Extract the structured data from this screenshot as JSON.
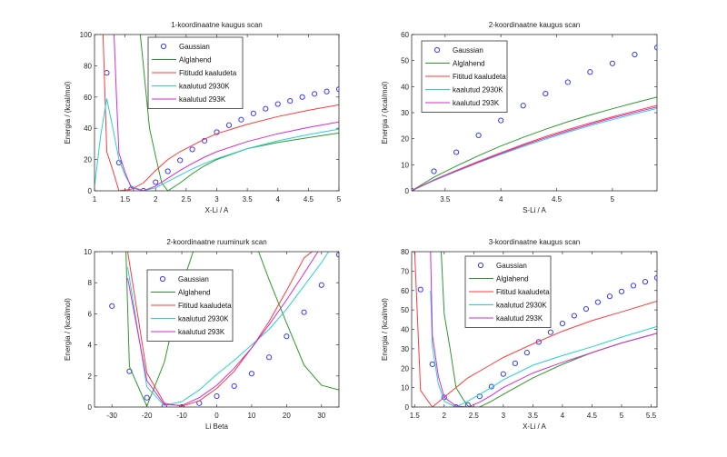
{
  "figure": {
    "background": "#ffffff",
    "series_styles": {
      "Gaussian": {
        "color": "#3a3aff",
        "marker": "circle"
      },
      "Alglahend": {
        "color": "#2c9a2c"
      },
      "Fititud kaaludeta": {
        "color": "#ff3a3a"
      },
      "kaalutud 2930K": {
        "color": "#2ad0d0"
      },
      "kaalutud 293K": {
        "color": "#d22ed2"
      }
    }
  },
  "chart_data": [
    {
      "type": "line",
      "title": "1-koordinaatne kaugus scan",
      "xlabel": "X-Li / A",
      "ylabel": "Energia / (kcal/mol)",
      "xlim": [
        1,
        5
      ],
      "ylim": [
        0,
        100
      ],
      "xticks": [
        1,
        1.5,
        2,
        2.5,
        3,
        3.5,
        4,
        4.5,
        5
      ],
      "xtick_labels": [
        "1",
        "1.5",
        "2",
        "2.5",
        "3",
        "3.5",
        "4",
        "4.5",
        "5"
      ],
      "yticks": [
        0,
        20,
        40,
        60,
        80,
        100
      ],
      "ytick_labels": [
        "0",
        "20",
        "40",
        "60",
        "80",
        "100"
      ],
      "legend": {
        "position": "top-center",
        "entries": [
          "Gaussian",
          "Alglahend",
          "Fititudd kaaludeta",
          "kaalutud 2930K",
          "kaalutud 293K"
        ]
      },
      "series": [
        {
          "name": "Gaussian",
          "style": "Gaussian",
          "x": [
            1.2,
            1.4,
            1.6,
            1.8,
            2.0,
            2.2,
            2.4,
            2.6,
            2.8,
            3.0,
            3.2,
            3.4,
            3.6,
            3.8,
            4.0,
            4.2,
            4.4,
            4.6,
            4.8,
            5.0
          ],
          "y": [
            75.5,
            18,
            1,
            0,
            5.5,
            12.5,
            19.5,
            26.5,
            32,
            37.5,
            42,
            45.5,
            49.5,
            52.5,
            55.5,
            57.5,
            60,
            62,
            63.5,
            65
          ]
        },
        {
          "name": "Alglahend",
          "style": "Alglahend",
          "x": [
            1.75,
            1.8,
            1.9,
            2.0,
            2.1,
            2.2,
            2.4,
            2.6,
            2.8,
            3.0,
            3.5,
            4.0,
            4.5,
            5.0
          ],
          "y": [
            100,
            80,
            40,
            22,
            5,
            0,
            5,
            11,
            16,
            20,
            27,
            31,
            34,
            37
          ]
        },
        {
          "name": "Fititudd kaaludeta",
          "style": "Fititud kaaludeta",
          "x": [
            1.14,
            1.2,
            1.3,
            1.4,
            1.6,
            1.8,
            2.0,
            2.2,
            2.4,
            2.6,
            2.8,
            3.0,
            3.5,
            4.0,
            4.5,
            5.0
          ],
          "y": [
            100,
            25,
            13,
            0,
            1,
            5,
            13,
            20,
            25,
            29,
            33,
            36.5,
            42.5,
            47.5,
            51.5,
            55
          ]
        },
        {
          "name": "kaalutud 2930K",
          "style": "kaalutud 2930K",
          "x": [
            1.0,
            1.1,
            1.2,
            1.3,
            1.4,
            1.5,
            1.6,
            1.8,
            2.0,
            2.2,
            2.4,
            2.6,
            2.8,
            3.0,
            3.5,
            4.0,
            4.5,
            5.0
          ],
          "y": [
            3,
            35,
            59,
            40,
            20,
            10,
            3,
            0,
            2,
            6,
            10,
            14,
            17.5,
            20.5,
            27,
            32,
            36,
            39.5
          ]
        },
        {
          "name": "kaalutud 293K",
          "style": "kaalutud 293K",
          "x": [
            1.32,
            1.36,
            1.4,
            1.5,
            1.6,
            1.8,
            2.0,
            2.2,
            2.4,
            2.6,
            2.8,
            3.0,
            3.5,
            4.0,
            4.5,
            5.0
          ],
          "y": [
            100,
            60,
            24,
            12,
            2,
            0,
            3,
            8,
            13,
            17.5,
            21.5,
            25,
            31.5,
            36.5,
            40.5,
            44
          ]
        }
      ]
    },
    {
      "type": "line",
      "title": "2-koordinaatne kaugus scan",
      "xlabel": "S-Li / A",
      "ylabel": "Energia / (kcal/mol)",
      "xlim": [
        3.2,
        5.4
      ],
      "ylim": [
        0,
        60
      ],
      "xticks": [
        3.5,
        4,
        4.5,
        5
      ],
      "xtick_labels": [
        "3.5",
        "4",
        "4.5",
        "5"
      ],
      "yticks": [
        0,
        10,
        20,
        30,
        40,
        50,
        60
      ],
      "ytick_labels": [
        "0",
        "10",
        "20",
        "30",
        "40",
        "50",
        "60"
      ],
      "legend": {
        "position": "top-left",
        "entries": [
          "Gaussian",
          "Alglahend",
          "Fititud kaaludeta",
          "kaalutud 2930K",
          "kaalutud 293K"
        ]
      },
      "series": [
        {
          "name": "Gaussian",
          "style": "Gaussian",
          "x": [
            3.2,
            3.4,
            3.6,
            3.8,
            4.0,
            4.2,
            4.4,
            4.6,
            4.8,
            5.0,
            5.2,
            5.4
          ],
          "y": [
            0,
            7.5,
            14.8,
            21.3,
            27,
            32.7,
            37.3,
            41.7,
            45.6,
            48.9,
            52.3,
            55
          ]
        },
        {
          "name": "Alglahend",
          "style": "Alglahend",
          "x": [
            3.2,
            3.4,
            3.6,
            3.8,
            4.0,
            4.2,
            4.4,
            4.6,
            4.8,
            5.0,
            5.2,
            5.4
          ],
          "y": [
            0,
            5.2,
            9.5,
            13.5,
            17.2,
            20.5,
            23.6,
            26.5,
            29.1,
            31.5,
            33.8,
            36
          ]
        },
        {
          "name": "Fititud kaaludeta",
          "style": "Fititud kaaludeta",
          "x": [
            3.2,
            3.4,
            3.6,
            3.8,
            4.0,
            4.2,
            4.4,
            4.6,
            4.8,
            5.0,
            5.2,
            5.4
          ],
          "y": [
            0,
            4.2,
            7.8,
            11.3,
            14.6,
            17.8,
            20.8,
            23.5,
            26,
            28.4,
            30.6,
            32.8
          ]
        },
        {
          "name": "kaalutud 2930K",
          "style": "kaalutud 2930K",
          "x": [
            3.2,
            3.4,
            3.6,
            3.8,
            4.0,
            4.2,
            4.4,
            4.6,
            4.8,
            5.0,
            5.2,
            5.4
          ],
          "y": [
            0,
            3.9,
            7.4,
            10.8,
            14,
            17,
            19.8,
            22.5,
            25,
            27.3,
            29.5,
            31.6
          ]
        },
        {
          "name": "kaalutud 293K",
          "style": "kaalutud 293K",
          "x": [
            3.2,
            3.4,
            3.6,
            3.8,
            4.0,
            4.2,
            4.4,
            4.6,
            4.8,
            5.0,
            5.2,
            5.4
          ],
          "y": [
            0,
            4.1,
            7.6,
            11,
            14.3,
            17.4,
            20.3,
            23,
            25.5,
            27.9,
            30.1,
            32.2
          ]
        }
      ]
    },
    {
      "type": "line",
      "title": "2-koordinaatne ruuminurk scan",
      "xlabel": "Li Beta",
      "ylabel": "Energia / (kcal/mol)",
      "xlim": [
        -35,
        35
      ],
      "ylim": [
        0,
        10
      ],
      "xticks": [
        -30,
        -20,
        -10,
        0,
        10,
        20,
        30
      ],
      "xtick_labels": [
        "-30",
        "-20",
        "-10",
        "0",
        "10",
        "20",
        "30"
      ],
      "yticks": [
        0,
        2,
        4,
        6,
        8,
        10
      ],
      "ytick_labels": [
        "0",
        "2",
        "4",
        "6",
        "8",
        "10"
      ],
      "legend": {
        "position": "top-center",
        "entries": [
          "Gaussian",
          "Alglahend",
          "Fititud kaaludeta",
          "kaalutud 2930K",
          "kaalutud 293K"
        ]
      },
      "series": [
        {
          "name": "Gaussian",
          "style": "Gaussian",
          "x": [
            -30,
            -25,
            -20,
            -15,
            -10,
            -5,
            0,
            5,
            10,
            15,
            20,
            25,
            30,
            35
          ],
          "y": [
            6.5,
            2.3,
            0.6,
            0.05,
            0,
            0.25,
            0.7,
            1.35,
            2.15,
            3.2,
            4.55,
            6.1,
            7.85,
            9.8
          ]
        },
        {
          "name": "Alglahend",
          "style": "Alglahend",
          "x": [
            -26,
            -25,
            -20,
            -15,
            -10,
            -6,
            -4,
            12,
            15,
            20,
            25,
            30,
            35
          ],
          "y": [
            10,
            2.6,
            0.05,
            2.9,
            7.8,
            10.5,
            10.5,
            10,
            8.2,
            5.4,
            2.7,
            1.4,
            1.1
          ]
        },
        {
          "name": "Fititud kaaludeta",
          "style": "Fititud kaaludeta",
          "x": [
            -25.5,
            -20,
            -15,
            -10,
            -5,
            0,
            5,
            10,
            15,
            20,
            25,
            28.5
          ],
          "y": [
            10,
            2.2,
            0.25,
            0.05,
            0.4,
            1.2,
            2.3,
            3.8,
            5.5,
            7.5,
            9.6,
            10.2
          ]
        },
        {
          "name": "kaalutud 2930K",
          "style": "kaalutud 2930K",
          "x": [
            -25.5,
            -20,
            -15,
            -10,
            -5,
            0,
            5,
            10,
            15,
            20,
            25,
            30,
            32
          ],
          "y": [
            9,
            1.3,
            0.1,
            0.35,
            1.1,
            2.1,
            3,
            4,
            5,
            6.3,
            7.8,
            9.3,
            10
          ]
        },
        {
          "name": "kaalutud 293K",
          "style": "kaalutud 293K",
          "x": [
            -25.5,
            -20,
            -15,
            -10,
            -5,
            0,
            5,
            10,
            15,
            20,
            25,
            29
          ],
          "y": [
            8.3,
            1.7,
            0.15,
            0.1,
            0.6,
            1.4,
            2.5,
            3.8,
            5.3,
            6.9,
            8.6,
            10
          ]
        }
      ]
    },
    {
      "type": "line",
      "title": "3-koordinaatne kaugus scan",
      "xlabel": "X-Li / A",
      "ylabel": "Energia / (kcal/mol)",
      "xlim": [
        1.45,
        5.6
      ],
      "ylim": [
        0,
        80
      ],
      "xticks": [
        1.5,
        2,
        2.5,
        3,
        3.5,
        4,
        4.5,
        5,
        5.5
      ],
      "xtick_labels": [
        "1.5",
        "2",
        "2.5",
        "3",
        "3.5",
        "4",
        "4.5",
        "5",
        "5.5"
      ],
      "yticks": [
        0,
        10,
        20,
        30,
        40,
        50,
        60,
        70,
        80
      ],
      "ytick_labels": [
        "0",
        "10",
        "20",
        "30",
        "40",
        "50",
        "60",
        "70",
        "80"
      ],
      "legend": {
        "position": "top-center",
        "entries": [
          "Gaussian",
          "Alglahend",
          "Fititud kaaludeta",
          "kaalutud 2930K",
          "kaalutud 293K"
        ]
      },
      "series": [
        {
          "name": "Gaussian",
          "style": "Gaussian",
          "x": [
            1.6,
            1.8,
            2.0,
            2.2,
            2.4,
            2.6,
            2.8,
            3.0,
            3.2,
            3.4,
            3.6,
            3.8,
            4.0,
            4.2,
            4.4,
            4.6,
            4.8,
            5.0,
            5.2,
            5.4,
            5.6
          ],
          "y": [
            60.5,
            22,
            5,
            0,
            1,
            5.5,
            10.5,
            17,
            22.5,
            28,
            33.5,
            38.5,
            43,
            47,
            50.5,
            54,
            57,
            59.5,
            62.5,
            64.5,
            66.5
          ]
        },
        {
          "name": "Alglahend",
          "style": "Alglahend",
          "x": [
            1.95,
            2.0,
            2.1,
            2.2,
            2.3,
            2.4,
            2.5,
            2.6,
            2.8,
            3.0,
            3.5,
            4.0,
            4.5,
            5.0,
            5.6
          ],
          "y": [
            80,
            48,
            30,
            10,
            5,
            0.5,
            0,
            0,
            3,
            6.5,
            15,
            22,
            28,
            33,
            38
          ]
        },
        {
          "name": "Fititud kaaludeta",
          "style": "Fititud kaaludeta",
          "x": [
            1.5,
            1.6,
            1.8,
            2.0,
            2.2,
            2.4,
            2.6,
            2.8,
            3.0,
            3.5,
            4.0,
            4.5,
            5.0,
            5.6
          ],
          "y": [
            80,
            8.5,
            0,
            5,
            10,
            15,
            18.5,
            22,
            25.5,
            32.5,
            39,
            44.5,
            49,
            54.5
          ]
        },
        {
          "name": "kaalutud 2930K",
          "style": "kaalutud 2930K",
          "x": [
            1.77,
            1.8,
            1.9,
            2.0,
            2.2,
            2.4,
            2.6,
            2.8,
            3.0,
            3.5,
            4.0,
            4.5,
            5.0,
            5.6
          ],
          "y": [
            60,
            31,
            12,
            3,
            0,
            3,
            6.5,
            10,
            14,
            21.5,
            26.5,
            31,
            36,
            41.5
          ]
        },
        {
          "name": "kaalutud 293K",
          "style": "kaalutud 293K",
          "x": [
            1.77,
            1.8,
            1.9,
            2.0,
            2.2,
            2.4,
            2.6,
            2.8,
            3.0,
            3.5,
            4.0,
            4.5,
            5.0,
            5.6
          ],
          "y": [
            80,
            37,
            16,
            5,
            0.5,
            0,
            2.5,
            6,
            10,
            17.5,
            23,
            28,
            33,
            38
          ]
        }
      ]
    }
  ]
}
